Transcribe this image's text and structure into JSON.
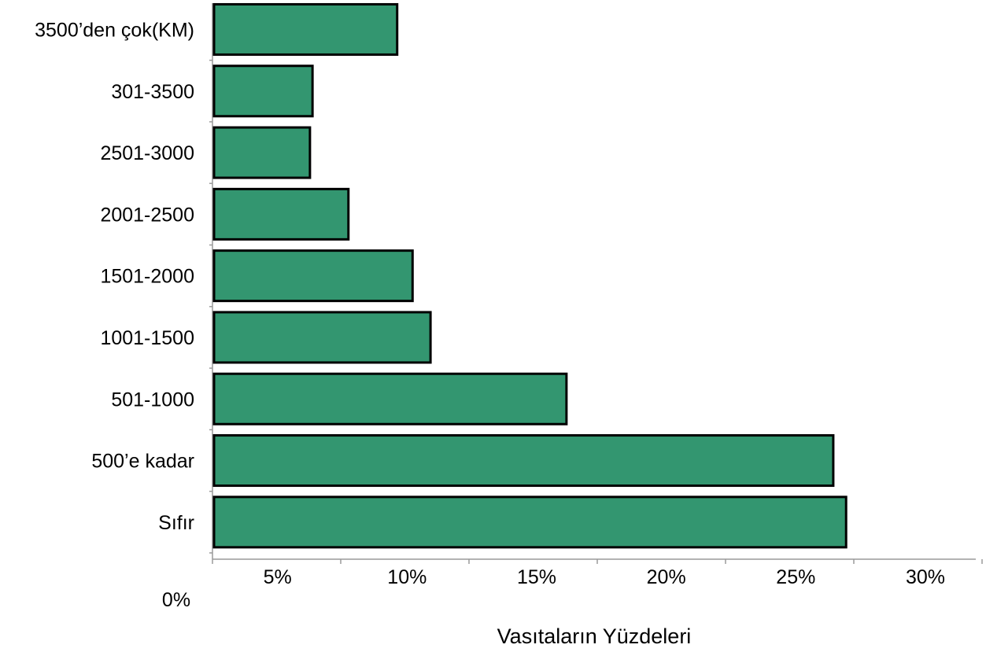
{
  "chart_data": {
    "type": "bar",
    "orientation": "horizontal",
    "categories": [
      "Sıfır",
      "500’e kadar",
      "501-1000",
      "1001-1500",
      "1501-2000",
      "2001-2500",
      "2501-3000",
      "301-3500",
      "3500’den çok(KM)"
    ],
    "values": [
      24.7,
      24.2,
      13.8,
      8.5,
      7.8,
      5.3,
      3.8,
      3.9,
      7.2
    ],
    "xlabel": "Vasıtaların Yüzdeleri",
    "ylabel": "",
    "xlim": [
      0,
      30
    ],
    "ticks": [
      0,
      5,
      10,
      15,
      20,
      25,
      30
    ],
    "tick_labels": [
      "0%",
      "5%",
      "10%",
      "15%",
      "20%",
      "25%",
      "30%"
    ],
    "bar_color": "#339670",
    "grid": false,
    "legend": "none"
  }
}
